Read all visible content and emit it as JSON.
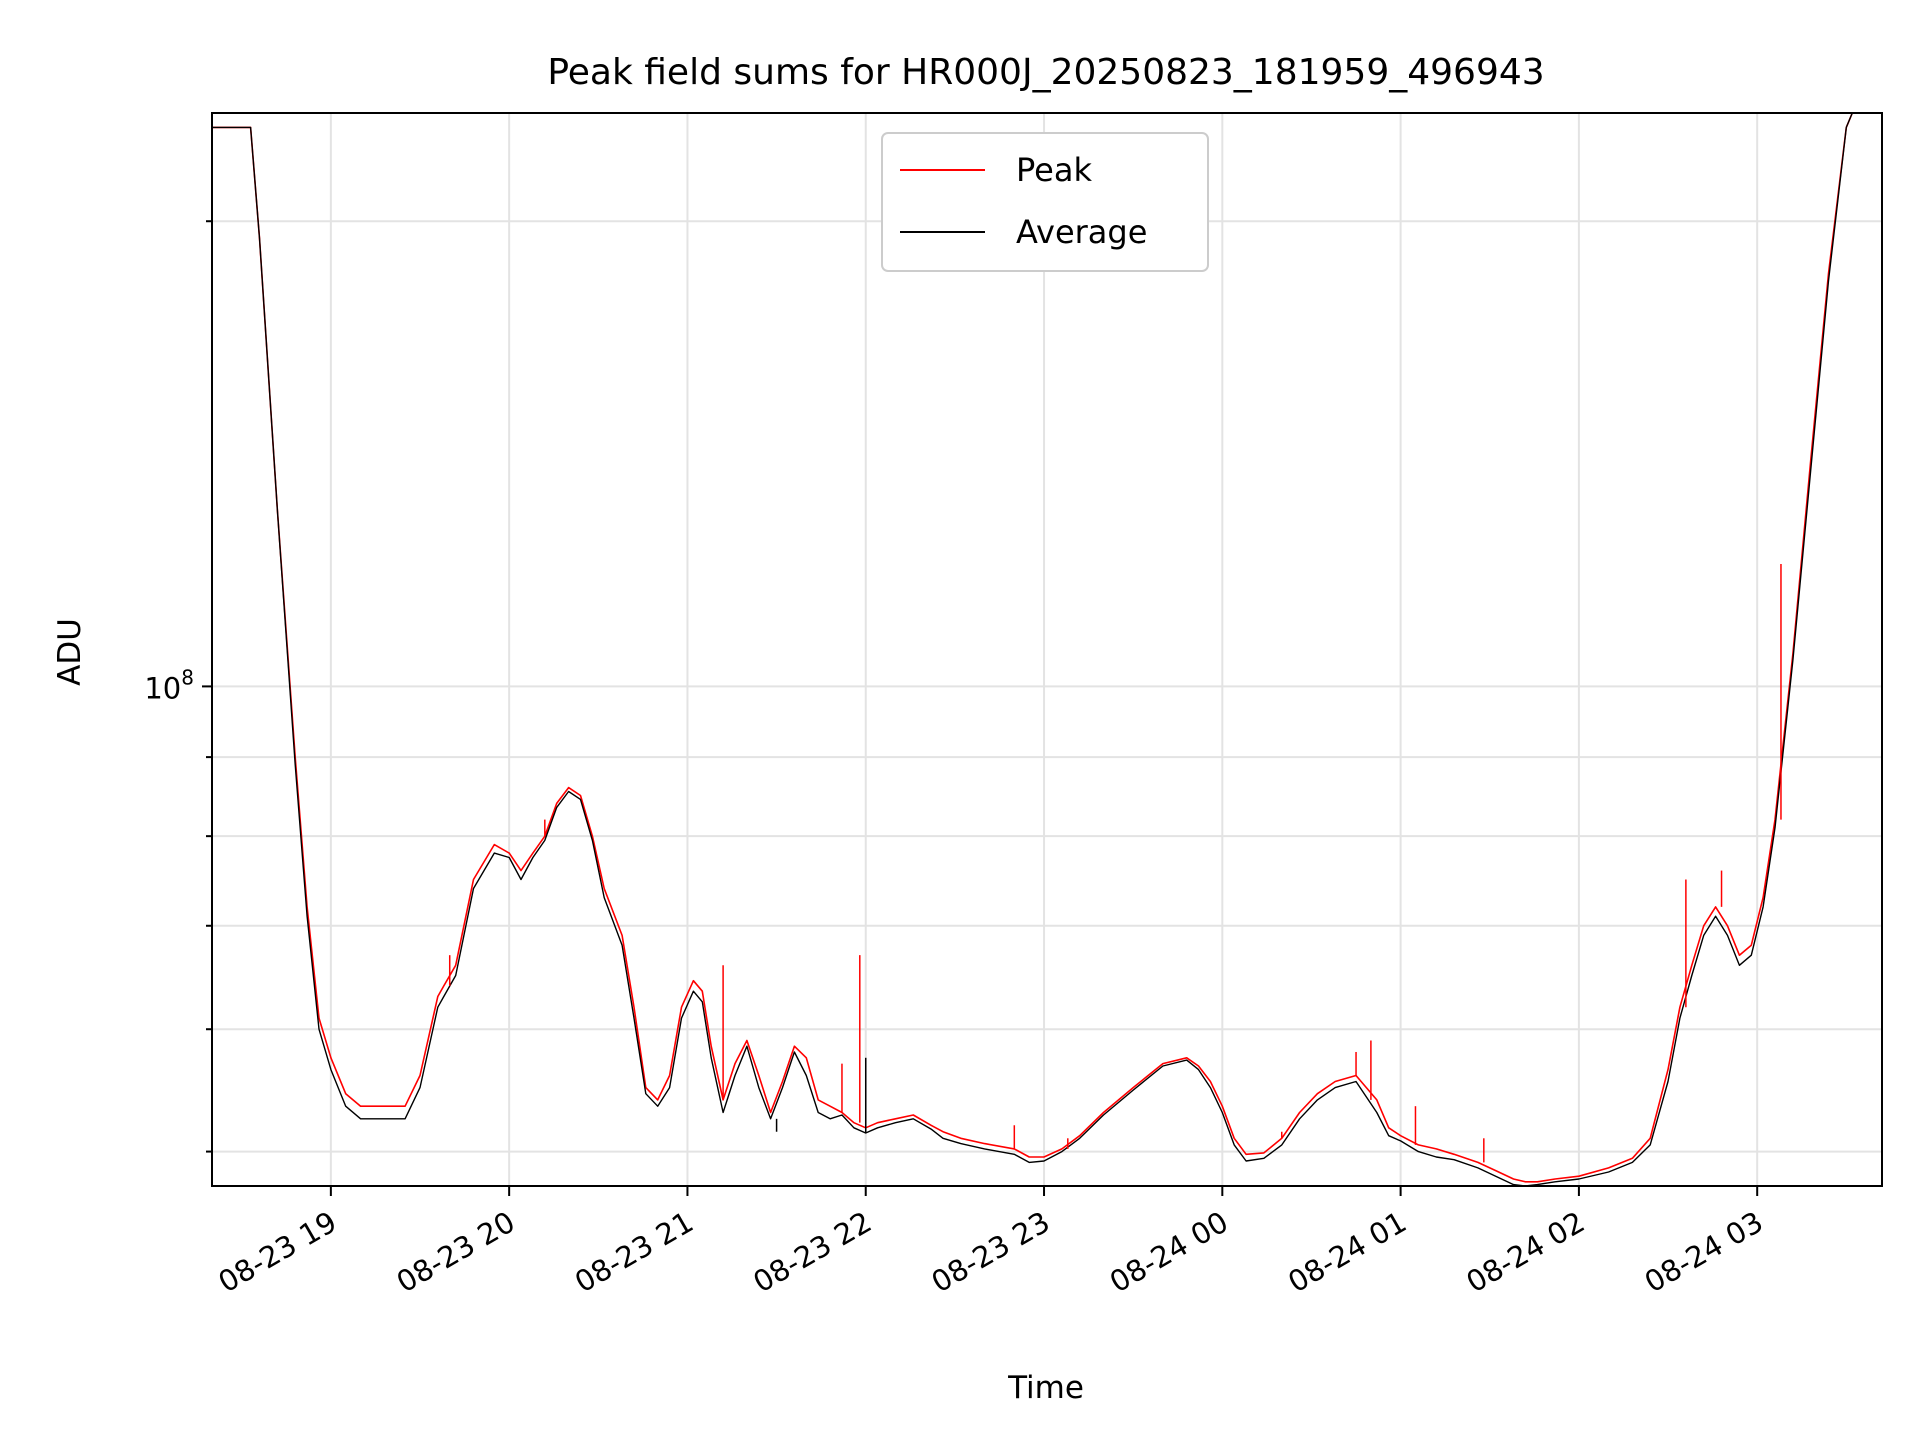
{
  "chart_data": {
    "type": "line",
    "title": "Peak field sums for HR000J_20250823_181959_496943",
    "xlabel": "Time",
    "ylabel": "ADU",
    "y_scale": "log",
    "ylim": [
      47500000.0,
      235000000.0
    ],
    "xlim": [
      "08-23 18:20",
      "08-24 03:42"
    ],
    "grid": true,
    "legend_position": "upper center",
    "x_ticks": [
      {
        "t": "08-23 19:00",
        "label": "08-23 19"
      },
      {
        "t": "08-23 20:00",
        "label": "08-23 20"
      },
      {
        "t": "08-23 21:00",
        "label": "08-23 21"
      },
      {
        "t": "08-23 22:00",
        "label": "08-23 22"
      },
      {
        "t": "08-23 23:00",
        "label": "08-23 23"
      },
      {
        "t": "08-24 00:00",
        "label": "08-24 00"
      },
      {
        "t": "08-24 01:00",
        "label": "08-24 01"
      },
      {
        "t": "08-24 02:00",
        "label": "08-24 02"
      },
      {
        "t": "08-24 03:00",
        "label": "08-24 03"
      }
    ],
    "y_major_ticks": [
      {
        "value": 100000000,
        "base": "10",
        "exp": "8"
      }
    ],
    "y_minor_ticks": [
      50000000.0,
      60000000.0,
      70000000.0,
      80000000.0,
      90000000.0,
      200000000.0
    ],
    "series": [
      {
        "name": "Peak",
        "color": "#ff0000",
        "x": [
          "08-23 18:20",
          "08-23 18:33",
          "08-23 18:36",
          "08-23 18:42",
          "08-23 18:48",
          "08-23 18:52",
          "08-23 18:56",
          "08-23 19:00",
          "08-23 19:05",
          "08-23 19:10",
          "08-23 19:15",
          "08-23 19:20",
          "08-23 19:25",
          "08-23 19:30",
          "08-23 19:36",
          "08-23 19:38",
          "08-23 19:42",
          "08-23 19:48",
          "08-23 19:55",
          "08-23 20:00",
          "08-23 20:04",
          "08-23 20:08",
          "08-23 20:12",
          "08-23 20:16",
          "08-23 20:20",
          "08-23 20:24",
          "08-23 20:28",
          "08-23 20:32",
          "08-23 20:38",
          "08-23 20:42",
          "08-23 20:46",
          "08-23 20:50",
          "08-23 20:54",
          "08-23 20:58",
          "08-23 21:02",
          "08-23 21:05",
          "08-23 21:08",
          "08-23 21:12",
          "08-23 21:16",
          "08-23 21:20",
          "08-23 21:24",
          "08-23 21:28",
          "08-23 21:32",
          "08-23 21:36",
          "08-23 21:40",
          "08-23 21:44",
          "08-23 21:48",
          "08-23 21:52",
          "08-23 21:56",
          "08-23 22:00",
          "08-23 22:04",
          "08-23 22:10",
          "08-23 22:16",
          "08-23 22:22",
          "08-23 22:26",
          "08-23 22:32",
          "08-23 22:40",
          "08-23 22:50",
          "08-23 22:55",
          "08-23 23:00",
          "08-23 23:06",
          "08-23 23:12",
          "08-23 23:20",
          "08-23 23:30",
          "08-23 23:40",
          "08-23 23:48",
          "08-23 23:52",
          "08-23 23:56",
          "08-24 00:00",
          "08-24 00:04",
          "08-24 00:08",
          "08-24 00:14",
          "08-24 00:20",
          "08-24 00:26",
          "08-24 00:32",
          "08-24 00:38",
          "08-24 00:45",
          "08-24 00:52",
          "08-24 00:56",
          "08-24 01:00",
          "08-24 01:06",
          "08-24 01:12",
          "08-24 01:18",
          "08-24 01:26",
          "08-24 01:32",
          "08-24 01:38",
          "08-24 01:42",
          "08-24 01:46",
          "08-24 01:52",
          "08-24 02:00",
          "08-24 02:10",
          "08-24 02:18",
          "08-24 02:24",
          "08-24 02:30",
          "08-24 02:34",
          "08-24 02:38",
          "08-24 02:42",
          "08-24 02:46",
          "08-24 02:50",
          "08-24 02:54",
          "08-24 02:58",
          "08-24 03:02",
          "08-24 03:06",
          "08-24 03:12",
          "08-24 03:18",
          "08-24 03:24",
          "08-24 03:30",
          "08-24 03:32"
        ],
        "y": [
          230000000.0,
          230000000.0,
          195000000.0,
          130000000.0,
          90000000.0,
          72000000.0,
          61000000.0,
          57500000.0,
          54500000.0,
          53500000.0,
          53500000.0,
          53500000.0,
          53500000.0,
          56000000.0,
          63000000.0,
          64000000.0,
          66000000.0,
          75000000.0,
          79000000.0,
          78000000.0,
          76000000.0,
          78000000.0,
          80000000.0,
          84000000.0,
          86000000.0,
          85000000.0,
          80000000.0,
          74000000.0,
          69000000.0,
          62000000.0,
          55000000.0,
          54000000.0,
          56000000.0,
          62000000.0,
          64500000.0,
          63500000.0,
          58500000.0,
          54000000.0,
          57000000.0,
          59000000.0,
          56000000.0,
          53000000.0,
          55500000.0,
          58500000.0,
          57500000.0,
          54000000.0,
          53500000.0,
          53000000.0,
          52200000.0,
          51800000.0,
          52200000.0,
          52500000.0,
          52800000.0,
          52000000.0,
          51500000.0,
          51000000.0,
          50600000.0,
          50200000.0,
          49600000.0,
          49600000.0,
          50200000.0,
          51200000.0,
          53000000.0,
          55000000.0,
          57000000.0,
          57500000.0,
          56800000.0,
          55500000.0,
          53500000.0,
          51000000.0,
          49800000.0,
          49900000.0,
          51000000.0,
          53000000.0,
          54500000.0,
          55500000.0,
          56000000.0,
          54000000.0,
          51800000.0,
          51200000.0,
          50500000.0,
          50200000.0,
          49800000.0,
          49200000.0,
          48600000.0,
          48000000.0,
          47800000.0,
          47800000.0,
          48000000.0,
          48200000.0,
          48800000.0,
          49500000.0,
          51000000.0,
          56500000.0,
          62000000.0,
          66000000.0,
          70000000.0,
          72000000.0,
          70000000.0,
          67000000.0,
          68000000.0,
          73000000.0,
          82000000.0,
          105000000.0,
          140000000.0,
          185000000.0,
          230000000.0,
          235000000.0
        ]
      },
      {
        "name": "Average",
        "color": "#000000",
        "x": [
          "08-23 18:20",
          "08-23 18:33",
          "08-23 18:36",
          "08-23 18:42",
          "08-23 18:48",
          "08-23 18:52",
          "08-23 18:56",
          "08-23 19:00",
          "08-23 19:05",
          "08-23 19:10",
          "08-23 19:15",
          "08-23 19:20",
          "08-23 19:25",
          "08-23 19:30",
          "08-23 19:36",
          "08-23 19:38",
          "08-23 19:42",
          "08-23 19:48",
          "08-23 19:55",
          "08-23 20:00",
          "08-23 20:04",
          "08-23 20:08",
          "08-23 20:12",
          "08-23 20:16",
          "08-23 20:20",
          "08-23 20:24",
          "08-23 20:28",
          "08-23 20:32",
          "08-23 20:38",
          "08-23 20:42",
          "08-23 20:46",
          "08-23 20:50",
          "08-23 20:54",
          "08-23 20:58",
          "08-23 21:02",
          "08-23 21:05",
          "08-23 21:08",
          "08-23 21:12",
          "08-23 21:16",
          "08-23 21:20",
          "08-23 21:24",
          "08-23 21:28",
          "08-23 21:32",
          "08-23 21:36",
          "08-23 21:40",
          "08-23 21:44",
          "08-23 21:48",
          "08-23 21:52",
          "08-23 21:56",
          "08-23 22:00",
          "08-23 22:04",
          "08-23 22:10",
          "08-23 22:16",
          "08-23 22:22",
          "08-23 22:26",
          "08-23 22:32",
          "08-23 22:40",
          "08-23 22:50",
          "08-23 22:55",
          "08-23 23:00",
          "08-23 23:06",
          "08-23 23:12",
          "08-23 23:20",
          "08-23 23:30",
          "08-23 23:40",
          "08-23 23:48",
          "08-23 23:52",
          "08-23 23:56",
          "08-24 00:00",
          "08-24 00:04",
          "08-24 00:08",
          "08-24 00:14",
          "08-24 00:20",
          "08-24 00:26",
          "08-24 00:32",
          "08-24 00:38",
          "08-24 00:45",
          "08-24 00:52",
          "08-24 00:56",
          "08-24 01:00",
          "08-24 01:06",
          "08-24 01:12",
          "08-24 01:18",
          "08-24 01:26",
          "08-24 01:32",
          "08-24 01:38",
          "08-24 01:42",
          "08-24 01:46",
          "08-24 01:52",
          "08-24 02:00",
          "08-24 02:10",
          "08-24 02:18",
          "08-24 02:24",
          "08-24 02:30",
          "08-24 02:34",
          "08-24 02:38",
          "08-24 02:42",
          "08-24 02:46",
          "08-24 02:50",
          "08-24 02:54",
          "08-24 02:58",
          "08-24 03:02",
          "08-24 03:06",
          "08-24 03:12",
          "08-24 03:18",
          "08-24 03:24",
          "08-24 03:30",
          "08-24 03:32"
        ],
        "y": [
          230000000.0,
          230000000.0,
          195000000.0,
          130000000.0,
          89000000.0,
          71000000.0,
          60000000.0,
          56500000.0,
          53500000.0,
          52500000.0,
          52500000.0,
          52500000.0,
          52500000.0,
          55000000.0,
          62000000.0,
          63000000.0,
          65000000.0,
          74000000.0,
          78000000.0,
          77500000.0,
          75000000.0,
          77500000.0,
          79500000.0,
          83500000.0,
          85500000.0,
          84500000.0,
          79500000.0,
          73000000.0,
          68000000.0,
          61000000.0,
          54500000.0,
          53500000.0,
          55000000.0,
          61000000.0,
          63500000.0,
          62500000.0,
          57500000.0,
          53000000.0,
          56000000.0,
          58500000.0,
          55000000.0,
          52500000.0,
          55000000.0,
          58000000.0,
          56000000.0,
          53000000.0,
          52500000.0,
          52800000.0,
          51800000.0,
          51400000.0,
          51800000.0,
          52200000.0,
          52500000.0,
          51700000.0,
          51000000.0,
          50600000.0,
          50200000.0,
          49800000.0,
          49200000.0,
          49300000.0,
          50000000.0,
          51000000.0,
          52800000.0,
          54800000.0,
          56800000.0,
          57300000.0,
          56500000.0,
          55000000.0,
          53000000.0,
          50500000.0,
          49300000.0,
          49500000.0,
          50500000.0,
          52500000.0,
          54000000.0,
          55000000.0,
          55500000.0,
          53000000.0,
          51200000.0,
          50800000.0,
          50000000.0,
          49600000.0,
          49400000.0,
          48800000.0,
          48200000.0,
          47600000.0,
          47500000.0,
          47600000.0,
          47800000.0,
          48000000.0,
          48500000.0,
          49200000.0,
          50500000.0,
          55500000.0,
          61000000.0,
          65000000.0,
          69000000.0,
          71000000.0,
          69000000.0,
          66000000.0,
          67000000.0,
          72000000.0,
          81000000.0,
          104000000.0,
          138000000.0,
          183000000.0,
          230000000.0,
          235000000.0
        ]
      }
    ],
    "peak_spikes": [
      {
        "t": "08-23 19:40",
        "y": 67000000.0
      },
      {
        "t": "08-23 20:12",
        "y": 82000000.0
      },
      {
        "t": "08-23 21:12",
        "y": 66000000.0
      },
      {
        "t": "08-23 21:52",
        "y": 57000000.0
      },
      {
        "t": "08-23 21:58",
        "y": 67000000.0
      },
      {
        "t": "08-23 22:50",
        "y": 52000000.0
      },
      {
        "t": "08-23 23:08",
        "y": 51000000.0
      },
      {
        "t": "08-24 00:20",
        "y": 51500000.0
      },
      {
        "t": "08-24 00:45",
        "y": 58000000.0
      },
      {
        "t": "08-24 00:50",
        "y": 59000000.0
      },
      {
        "t": "08-24 01:05",
        "y": 53500000.0
      },
      {
        "t": "08-24 01:28",
        "y": 51000000.0
      },
      {
        "t": "08-24 02:36",
        "y": 75000000.0
      },
      {
        "t": "08-24 02:45",
        "y": 72000000.0
      },
      {
        "t": "08-24 02:48",
        "y": 76000000.0
      },
      {
        "t": "08-24 03:08",
        "y": 120000000.0
      }
    ],
    "average_spikes": [
      {
        "t": "08-23 22:00",
        "y": 57500000.0
      },
      {
        "t": "08-23 21:30",
        "y": 51500000.0
      }
    ]
  }
}
